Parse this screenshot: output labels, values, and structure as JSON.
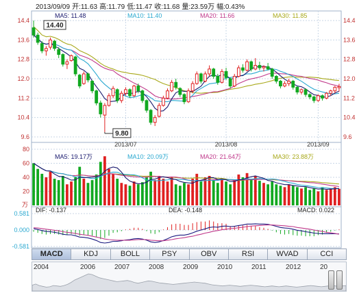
{
  "header": {
    "date": "2013/09/09",
    "open_label": "开:11.63",
    "high_label": "高:11.79",
    "low_label": "低:11.47",
    "close_label": "收:11.68",
    "volume_label": "量:23.59万",
    "change_label": "幅:0.43%"
  },
  "colors": {
    "up": "#e02020",
    "down": "#11a820",
    "ma5": "#1a1a6e",
    "ma10": "#29a8d0",
    "ma20": "#c0388a",
    "ma30": "#a8a818",
    "grid": "#c8d6e6",
    "axis": "#c03030"
  },
  "chart_data": [
    {
      "type": "candlestick",
      "ylim": [
        9.6,
        14.4
      ],
      "yticks": [
        "14.4",
        "13.6",
        "12.8",
        "12.0",
        "11.2",
        "10.4",
        "9.6"
      ],
      "x_labels": [
        {
          "label": "2013/07",
          "at": 22
        },
        {
          "label": "2013/08",
          "at": 46
        },
        {
          "label": "2013/09",
          "at": 68
        }
      ],
      "legend": {
        "ma5": "MA5: 11.48",
        "ma10": "MA10: 11.40",
        "ma20": "MA20: 11.66",
        "ma30": "MA30: 11.85"
      },
      "annotations": {
        "max": "14.40",
        "min": "9.80"
      },
      "ohlc": [
        [
          14.1,
          14.4,
          13.7,
          13.8
        ],
        [
          13.8,
          13.9,
          13.4,
          13.5
        ],
        [
          13.45,
          13.55,
          13.05,
          13.15
        ],
        [
          13.15,
          13.35,
          12.95,
          13.25
        ],
        [
          13.3,
          13.7,
          13.2,
          13.6
        ],
        [
          13.55,
          13.6,
          13.15,
          13.25
        ],
        [
          13.2,
          13.3,
          12.85,
          13.0
        ],
        [
          13.0,
          13.05,
          12.5,
          12.6
        ],
        [
          12.6,
          12.8,
          12.4,
          12.7
        ],
        [
          12.75,
          13.0,
          12.7,
          12.95
        ],
        [
          12.9,
          12.95,
          12.1,
          12.2
        ],
        [
          12.15,
          12.2,
          11.6,
          11.7
        ],
        [
          11.8,
          12.3,
          11.75,
          12.2
        ],
        [
          12.2,
          12.25,
          11.85,
          11.95
        ],
        [
          11.9,
          11.95,
          11.4,
          11.5
        ],
        [
          11.5,
          11.55,
          10.9,
          11.0
        ],
        [
          11.0,
          11.1,
          10.4,
          10.55
        ],
        [
          10.5,
          11.0,
          9.8,
          10.9
        ],
        [
          10.9,
          11.4,
          10.85,
          11.3
        ],
        [
          11.3,
          11.7,
          11.2,
          11.6
        ],
        [
          11.55,
          11.6,
          11.0,
          11.1
        ],
        [
          11.1,
          11.5,
          11.0,
          11.4
        ],
        [
          11.4,
          11.65,
          11.3,
          11.55
        ],
        [
          11.55,
          11.6,
          11.2,
          11.3
        ],
        [
          11.3,
          11.75,
          11.25,
          11.7
        ],
        [
          11.7,
          11.8,
          11.4,
          11.5
        ],
        [
          11.5,
          11.55,
          11.0,
          11.1
        ],
        [
          11.1,
          11.15,
          10.6,
          10.7
        ],
        [
          10.7,
          10.75,
          10.1,
          10.2
        ],
        [
          10.2,
          10.5,
          10.05,
          10.4
        ],
        [
          10.45,
          11.0,
          10.4,
          10.9
        ],
        [
          10.9,
          11.3,
          10.85,
          11.2
        ],
        [
          11.2,
          11.6,
          11.15,
          11.5
        ],
        [
          11.5,
          11.95,
          11.45,
          11.85
        ],
        [
          11.85,
          12.0,
          11.55,
          11.65
        ],
        [
          11.6,
          11.65,
          11.25,
          11.35
        ],
        [
          11.35,
          11.4,
          10.95,
          11.05
        ],
        [
          11.05,
          11.6,
          11.0,
          11.5
        ],
        [
          11.5,
          11.9,
          11.4,
          11.8
        ],
        [
          11.8,
          12.3,
          11.75,
          12.2
        ],
        [
          12.2,
          12.25,
          11.8,
          11.9
        ],
        [
          11.9,
          12.3,
          11.85,
          12.2
        ],
        [
          12.2,
          12.55,
          12.1,
          12.4
        ],
        [
          12.4,
          12.45,
          12.0,
          12.1
        ],
        [
          12.1,
          12.2,
          11.75,
          11.85
        ],
        [
          11.85,
          12.4,
          11.8,
          12.3
        ],
        [
          12.3,
          12.45,
          11.95,
          12.05
        ],
        [
          12.0,
          12.05,
          11.6,
          11.7
        ],
        [
          11.7,
          12.2,
          11.65,
          12.1
        ],
        [
          12.1,
          12.55,
          12.05,
          12.45
        ],
        [
          12.45,
          12.6,
          12.25,
          12.35
        ],
        [
          12.35,
          12.8,
          12.3,
          12.7
        ],
        [
          12.7,
          12.75,
          12.3,
          12.4
        ],
        [
          12.4,
          12.85,
          12.35,
          12.55
        ],
        [
          12.55,
          12.7,
          12.35,
          12.45
        ],
        [
          12.45,
          12.55,
          12.3,
          12.5
        ],
        [
          12.5,
          12.65,
          12.35,
          12.4
        ],
        [
          12.4,
          12.45,
          12.0,
          12.1
        ],
        [
          12.1,
          12.15,
          11.8,
          11.9
        ],
        [
          11.9,
          11.95,
          11.6,
          11.7
        ],
        [
          11.7,
          11.9,
          11.65,
          11.8
        ],
        [
          11.8,
          12.0,
          11.7,
          11.9
        ],
        [
          11.9,
          11.95,
          11.55,
          11.65
        ],
        [
          11.65,
          11.7,
          11.35,
          11.45
        ],
        [
          11.45,
          11.6,
          11.35,
          11.55
        ],
        [
          11.55,
          11.6,
          11.25,
          11.35
        ],
        [
          11.35,
          11.4,
          11.15,
          11.25
        ],
        [
          11.25,
          11.3,
          11.0,
          11.1
        ],
        [
          11.1,
          11.35,
          11.05,
          11.3
        ],
        [
          11.3,
          11.35,
          11.1,
          11.2
        ],
        [
          11.2,
          11.45,
          11.15,
          11.4
        ],
        [
          11.4,
          11.55,
          11.3,
          11.5
        ],
        [
          11.5,
          11.7,
          11.4,
          11.65
        ],
        [
          11.63,
          11.79,
          11.47,
          11.68
        ]
      ]
    },
    {
      "type": "bar",
      "unit": "万",
      "ylim": [
        0,
        80
      ],
      "yticks": [
        "80",
        "60",
        "40",
        "20"
      ],
      "legend": {
        "ma5": "MA5: 19.17万",
        "ma10": "MA10: 20.09万",
        "ma20": "MA20: 21.64万",
        "ma30": "MA30: 23.88万"
      },
      "volume": [
        60,
        52,
        45,
        40,
        48,
        38,
        36,
        42,
        30,
        34,
        40,
        55,
        38,
        32,
        36,
        44,
        62,
        70,
        52,
        45,
        38,
        32,
        30,
        28,
        34,
        30,
        33,
        40,
        48,
        36,
        42,
        38,
        34,
        40,
        30,
        28,
        32,
        30,
        38,
        45,
        34,
        40,
        42,
        36,
        32,
        38,
        34,
        30,
        36,
        44,
        40,
        46,
        38,
        42,
        35,
        32,
        30,
        34,
        30,
        28,
        26,
        30,
        28,
        26,
        24,
        26,
        22,
        24,
        20,
        26,
        22,
        24,
        26,
        23.59
      ]
    },
    {
      "type": "line",
      "name": "MACD",
      "ylim": [
        -0.581,
        0.581
      ],
      "yticks": [
        "0.581",
        "0.000",
        "-0.581"
      ],
      "legend": {
        "dif": "DIF: -0.137",
        "dea": "DEA: -0.148",
        "macd": "MACD: 0.022"
      },
      "dif": [
        0.05,
        0.02,
        -0.02,
        -0.05,
        -0.06,
        -0.08,
        -0.11,
        -0.15,
        -0.17,
        -0.17,
        -0.2,
        -0.25,
        -0.26,
        -0.28,
        -0.32,
        -0.37,
        -0.44,
        -0.46,
        -0.44,
        -0.4,
        -0.4,
        -0.38,
        -0.35,
        -0.34,
        -0.31,
        -0.3,
        -0.32,
        -0.36,
        -0.42,
        -0.44,
        -0.42,
        -0.37,
        -0.31,
        -0.24,
        -0.2,
        -0.18,
        -0.18,
        -0.15,
        -0.1,
        -0.04,
        0.0,
        0.04,
        0.09,
        0.11,
        0.1,
        0.13,
        0.14,
        0.12,
        0.13,
        0.16,
        0.18,
        0.21,
        0.21,
        0.22,
        0.21,
        0.21,
        0.2,
        0.17,
        0.13,
        0.09,
        0.07,
        0.06,
        0.03,
        -0.01,
        -0.03,
        -0.06,
        -0.08,
        -0.11,
        -0.12,
        -0.13,
        -0.13,
        -0.13,
        -0.13,
        -0.137
      ],
      "dea": [
        0.08,
        0.07,
        0.05,
        0.03,
        0.01,
        -0.01,
        -0.03,
        -0.06,
        -0.08,
        -0.1,
        -0.12,
        -0.15,
        -0.17,
        -0.19,
        -0.22,
        -0.25,
        -0.28,
        -0.32,
        -0.34,
        -0.35,
        -0.36,
        -0.36,
        -0.36,
        -0.36,
        -0.35,
        -0.34,
        -0.34,
        -0.34,
        -0.36,
        -0.37,
        -0.38,
        -0.38,
        -0.36,
        -0.34,
        -0.31,
        -0.29,
        -0.27,
        -0.24,
        -0.22,
        -0.18,
        -0.15,
        -0.11,
        -0.08,
        -0.04,
        -0.02,
        0.01,
        0.03,
        0.05,
        0.06,
        0.08,
        0.1,
        0.12,
        0.14,
        0.15,
        0.16,
        0.17,
        0.18,
        0.18,
        0.17,
        0.16,
        0.15,
        0.13,
        0.12,
        0.09,
        0.07,
        0.05,
        0.03,
        0.0,
        -0.03,
        -0.05,
        -0.08,
        -0.1,
        -0.12,
        -0.148
      ]
    }
  ],
  "tabs": [
    "MACD",
    "KDJ",
    "BOLL",
    "PSY",
    "OBV",
    "RSI",
    "WVAD",
    "CCI"
  ],
  "navigator": {
    "years": [
      "2004",
      "2006",
      "2007",
      "2008",
      "2009",
      "2010",
      "2011",
      "2012",
      "20"
    ],
    "history": [
      13,
      16,
      12,
      10,
      8,
      9,
      12,
      11,
      10,
      12,
      15,
      20,
      26,
      30,
      34,
      38,
      42,
      40,
      36,
      32,
      30,
      28,
      26,
      24,
      22,
      23,
      24,
      25,
      23,
      20,
      18,
      20,
      22,
      24,
      23,
      21,
      19,
      18,
      17,
      16,
      15,
      16,
      17,
      18,
      19,
      20,
      21,
      20,
      19,
      18,
      16,
      14,
      13,
      12,
      11,
      12,
      13,
      12,
      11,
      10,
      11,
      12,
      13,
      12,
      11,
      10,
      9,
      10,
      11,
      10,
      9,
      10,
      11,
      10,
      9,
      8,
      9,
      10,
      11,
      12,
      11,
      10,
      9,
      10,
      11,
      12,
      11,
      10,
      11,
      12
    ]
  }
}
